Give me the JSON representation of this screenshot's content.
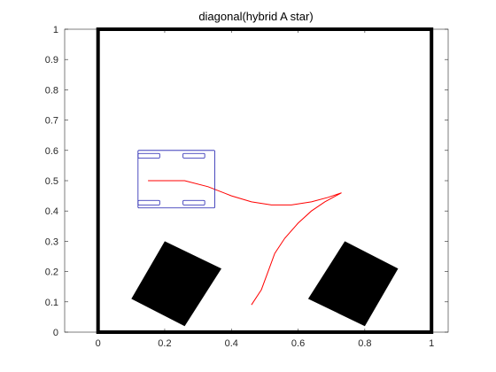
{
  "chart_data": {
    "type": "line",
    "title": "diagonal(hybrid A star)",
    "xlabel": "",
    "ylabel": "",
    "xlim": [
      -0.1,
      1.05
    ],
    "ylim": [
      0,
      1
    ],
    "x_ticks": [
      "0",
      "0.2",
      "0.4",
      "0.6",
      "0.8",
      "1"
    ],
    "x_tick_values": [
      0,
      0.2,
      0.4,
      0.6,
      0.8,
      1
    ],
    "y_ticks": [
      "0",
      "0.1",
      "0.2",
      "0.3",
      "0.4",
      "0.5",
      "0.6",
      "0.7",
      "0.8",
      "0.9",
      "1"
    ],
    "y_tick_values": [
      0,
      0.1,
      0.2,
      0.3,
      0.4,
      0.5,
      0.6,
      0.7,
      0.8,
      0.9,
      1
    ],
    "grid": false,
    "colors": {
      "path": "#ff0000",
      "vehicle": "#1f1faf",
      "obstacle": "#000000",
      "boundary": "#000000",
      "axis": "#262626"
    },
    "boundary": [
      [
        0,
        0
      ],
      [
        1,
        0
      ],
      [
        1,
        1
      ],
      [
        0,
        1
      ]
    ],
    "obstacles": [
      [
        [
          0.2,
          0.3
        ],
        [
          0.37,
          0.21
        ],
        [
          0.26,
          0.02
        ],
        [
          0.1,
          0.11
        ]
      ],
      [
        [
          0.74,
          0.3
        ],
        [
          0.9,
          0.21
        ],
        [
          0.8,
          0.02
        ],
        [
          0.63,
          0.11
        ]
      ]
    ],
    "path": [
      [
        0.46,
        0.09
      ],
      [
        0.49,
        0.14
      ],
      [
        0.51,
        0.2
      ],
      [
        0.53,
        0.26
      ],
      [
        0.56,
        0.31
      ],
      [
        0.6,
        0.36
      ],
      [
        0.64,
        0.4
      ],
      [
        0.68,
        0.43
      ],
      [
        0.73,
        0.46
      ],
      [
        0.69,
        0.445
      ],
      [
        0.64,
        0.43
      ],
      [
        0.58,
        0.42
      ],
      [
        0.52,
        0.42
      ],
      [
        0.46,
        0.43
      ],
      [
        0.4,
        0.45
      ],
      [
        0.33,
        0.48
      ],
      [
        0.26,
        0.5
      ],
      [
        0.19,
        0.5
      ],
      [
        0.15,
        0.5
      ]
    ],
    "vehicle": {
      "body": [
        0.12,
        0.41,
        0.35,
        0.6
      ],
      "wheels": [
        [
          0.12,
          0.575,
          0.185,
          0.59
        ],
        [
          0.255,
          0.575,
          0.32,
          0.59
        ],
        [
          0.12,
          0.42,
          0.185,
          0.435
        ],
        [
          0.255,
          0.42,
          0.32,
          0.435
        ]
      ]
    }
  }
}
